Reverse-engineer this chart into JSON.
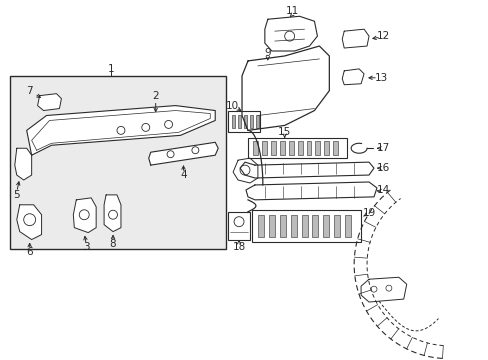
{
  "background_color": "#ffffff",
  "fig_width": 4.89,
  "fig_height": 3.6,
  "dpi": 100,
  "line_color": "#2a2a2a",
  "fill_color": "#d8d8d8"
}
